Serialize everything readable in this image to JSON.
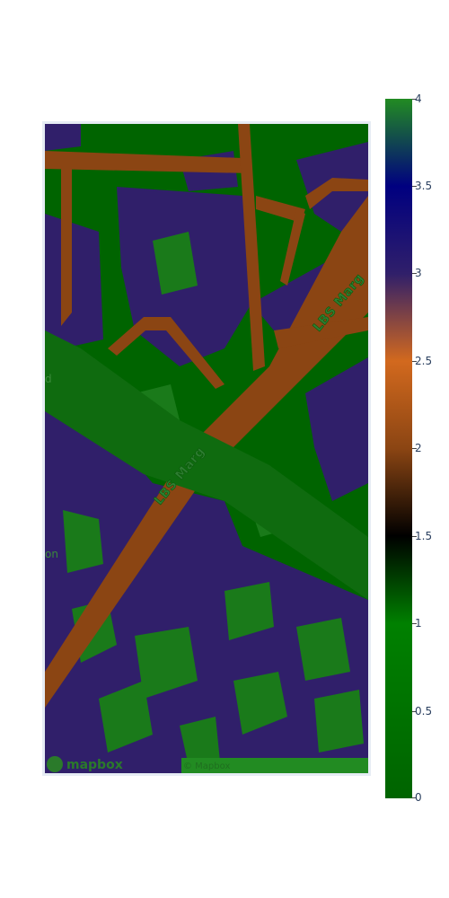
{
  "map": {
    "roads": [
      {
        "label": "LBS Marg"
      },
      {
        "label": "LBS Marg"
      }
    ],
    "place_label_left": "on",
    "place_label_edge": "d",
    "attribution": "© Mapbox",
    "logo_text": "mapbox",
    "classes": {
      "0": "#006400",
      "1": "#008000",
      "2": "#8b4513",
      "3": "#301f6a",
      "4": "#228b22"
    }
  },
  "colorbar": {
    "min": 0,
    "max": 4,
    "tick_labels": [
      "0",
      "0.5",
      "1",
      "1.5",
      "2",
      "2.5",
      "3",
      "3.5",
      "4"
    ],
    "colors": [
      "#006400",
      "#008000",
      "#000000",
      "#8b4513",
      "#d2691e",
      "#301f6a",
      "#000080",
      "#228b22"
    ]
  }
}
